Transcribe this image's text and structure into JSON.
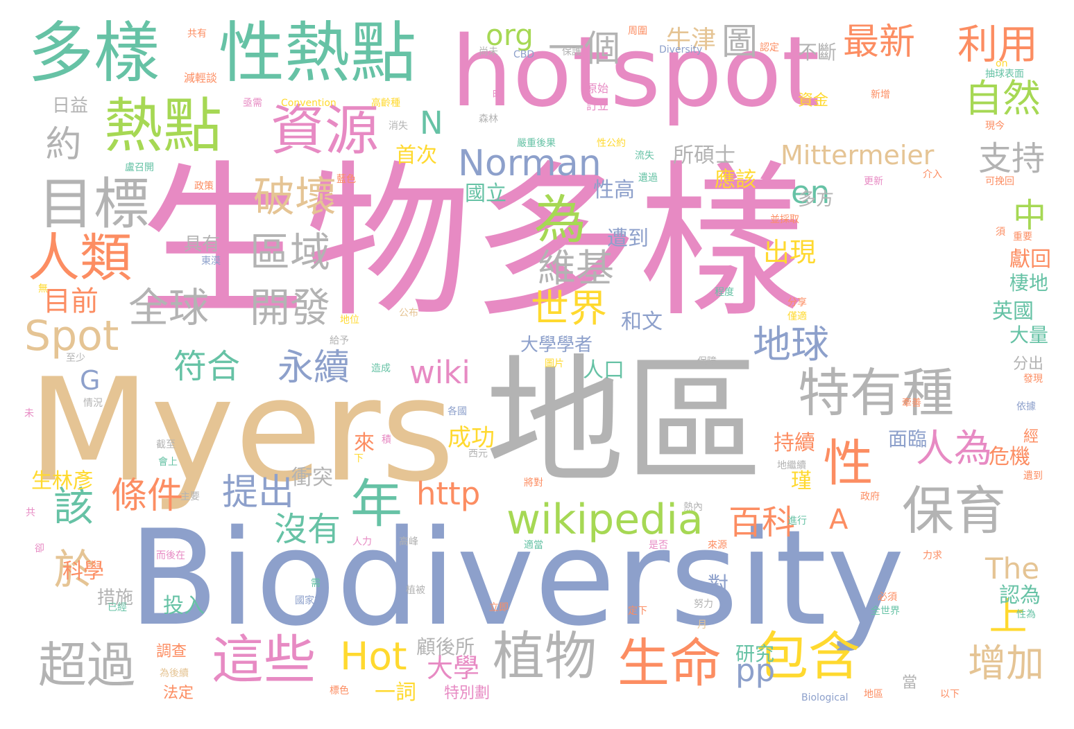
{
  "title": "word cloud",
  "palette": {
    "pink": "#e78ac3",
    "blue": "#8da0cb",
    "gray": "#b3b3b3",
    "sand": "#e5c494",
    "green": "#66c2a5",
    "lime": "#a6d854",
    "orange": "#fc8d62",
    "yellow": "#ffd92f"
  },
  "words": [
    "生物多樣",
    "Myers",
    "地區",
    "Biodiversity",
    "hotspot",
    "多樣",
    "性熱點",
    "熱點",
    "資源",
    "目標",
    "特有種",
    "保育",
    "為",
    "年",
    "人類",
    "wikipedia",
    "這些",
    "植物",
    "生命",
    "包含",
    "Norman",
    "破壞",
    "區域",
    "開發",
    "維基",
    "全球",
    "世界",
    "地球",
    "自然",
    "支持",
    "永續",
    "提出",
    "條件",
    "超過",
    "於",
    "該",
    "Spot",
    "目前",
    "利用",
    "最新",
    "一個",
    "圖",
    "牛津",
    "org",
    "約",
    "Mittermeier",
    "增加",
    "人為",
    "性",
    "百科",
    "符合",
    "沒有",
    "Hot",
    "wiki",
    "http",
    "pp",
    "大學",
    "A",
    "The",
    "上",
    "中",
    "en",
    "出現",
    "所碩士",
    "國立",
    "應該",
    "性高",
    "多方",
    "遭到",
    "具有",
    "首次",
    "N",
    "G",
    "生林彥",
    "科學",
    "一詞",
    "大學學者",
    "成功",
    "和文",
    "人口",
    "英國",
    "大量",
    "棲地",
    "獻回",
    "持續",
    "危機",
    "瑾",
    "衝突",
    "認為",
    "對",
    "研究",
    "面臨",
    "分出",
    "日益",
    "減輕談",
    "共有",
    "Convention",
    "高齡種",
    "CBD",
    "Diversity",
    "保護",
    "尚未",
    "不斷",
    "認定",
    "資金",
    "新增",
    "原始",
    "訂立",
    "森林",
    "嚴重後果",
    "性公約",
    "流失",
    "遺過",
    "介入",
    "更新",
    "可挽回",
    "現今",
    "重要",
    "並採取",
    "程度",
    "分享",
    "僅適",
    "公布",
    "地位",
    "給予",
    "至少",
    "造成",
    "積",
    "圖片",
    "保障",
    "各國",
    "情況",
    "未",
    "來",
    "下",
    "西元",
    "會上",
    "截至",
    "主要",
    "將對",
    "熱內",
    "進行",
    "政府",
    "是否",
    "來源",
    "適當",
    "高峰",
    "人力",
    "力求",
    "而後在",
    "措施",
    "已經",
    "需",
    "國家簽",
    "植被",
    "必須",
    "全世界",
    "投入",
    "立即",
    "定下",
    "月",
    "努力",
    "性為",
    "調查",
    "為後續",
    "法定",
    "顧後所",
    "標色",
    "特別劃",
    "Biological",
    "地區",
    "以下",
    "當",
    "發現",
    "依據",
    "經",
    "遺到",
    "牽善",
    "地繼續",
    "盧召開",
    "政策",
    "藍色",
    "消失",
    "亟需",
    "時",
    "共",
    "卻",
    "無",
    "東漠",
    "須",
    "on",
    "抽球表面",
    "周圍"
  ]
}
